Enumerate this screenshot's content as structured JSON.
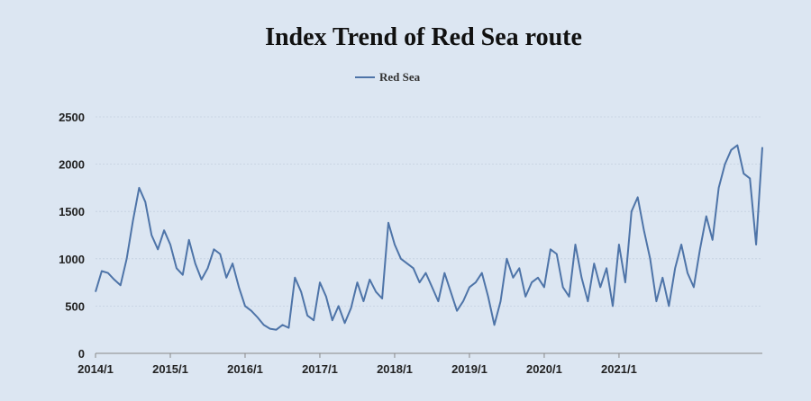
{
  "chart_data": {
    "type": "line",
    "title": "Index Trend of Red Sea route",
    "xlabel": "",
    "ylabel": "",
    "ylim": [
      0,
      2500
    ],
    "grid": true,
    "legend_position": "top-center",
    "y_ticks": [
      0,
      500,
      1000,
      1500,
      2000,
      2500
    ],
    "x_ticks": [
      "2014/1",
      "2015/1",
      "2016/1",
      "2017/1",
      "2018/1",
      "2019/1",
      "2020/1",
      "2021/1"
    ],
    "series": [
      {
        "name": "Red Sea",
        "color": "#4e74a8",
        "points": [
          [
            "2014/1",
            650
          ],
          [
            "2014/2",
            870
          ],
          [
            "2014/3",
            850
          ],
          [
            "2014/4",
            780
          ],
          [
            "2014/5",
            720
          ],
          [
            "2014/6",
            1000
          ],
          [
            "2014/7",
            1400
          ],
          [
            "2014/8",
            1750
          ],
          [
            "2014/9",
            1600
          ],
          [
            "2014/10",
            1250
          ],
          [
            "2014/11",
            1100
          ],
          [
            "2014/12",
            1300
          ],
          [
            "2015/1",
            1150
          ],
          [
            "2015/2",
            900
          ],
          [
            "2015/3",
            830
          ],
          [
            "2015/4",
            1200
          ],
          [
            "2015/5",
            950
          ],
          [
            "2015/6",
            780
          ],
          [
            "2015/7",
            900
          ],
          [
            "2015/8",
            1100
          ],
          [
            "2015/9",
            1050
          ],
          [
            "2015/10",
            800
          ],
          [
            "2015/11",
            950
          ],
          [
            "2015/12",
            700
          ],
          [
            "2016/1",
            500
          ],
          [
            "2016/2",
            450
          ],
          [
            "2016/3",
            380
          ],
          [
            "2016/4",
            300
          ],
          [
            "2016/5",
            260
          ],
          [
            "2016/6",
            250
          ],
          [
            "2016/7",
            300
          ],
          [
            "2016/8",
            270
          ],
          [
            "2016/9",
            800
          ],
          [
            "2016/10",
            650
          ],
          [
            "2016/11",
            400
          ],
          [
            "2016/12",
            350
          ],
          [
            "2017/1",
            750
          ],
          [
            "2017/2",
            600
          ],
          [
            "2017/3",
            350
          ],
          [
            "2017/4",
            500
          ],
          [
            "2017/5",
            320
          ],
          [
            "2017/6",
            480
          ],
          [
            "2017/7",
            750
          ],
          [
            "2017/8",
            550
          ],
          [
            "2017/9",
            780
          ],
          [
            "2017/10",
            650
          ],
          [
            "2017/11",
            580
          ],
          [
            "2017/12",
            1380
          ],
          [
            "2018/1",
            1150
          ],
          [
            "2018/2",
            1000
          ],
          [
            "2018/3",
            950
          ],
          [
            "2018/4",
            900
          ],
          [
            "2018/5",
            750
          ],
          [
            "2018/6",
            850
          ],
          [
            "2018/7",
            700
          ],
          [
            "2018/8",
            550
          ],
          [
            "2018/9",
            850
          ],
          [
            "2018/10",
            650
          ],
          [
            "2018/11",
            450
          ],
          [
            "2018/12",
            550
          ],
          [
            "2019/1",
            700
          ],
          [
            "2019/2",
            750
          ],
          [
            "2019/3",
            850
          ],
          [
            "2019/4",
            600
          ],
          [
            "2019/5",
            300
          ],
          [
            "2019/6",
            550
          ],
          [
            "2019/7",
            1000
          ],
          [
            "2019/8",
            800
          ],
          [
            "2019/9",
            900
          ],
          [
            "2019/10",
            600
          ],
          [
            "2019/11",
            750
          ],
          [
            "2019/12",
            800
          ],
          [
            "2020/1",
            700
          ],
          [
            "2020/2",
            1100
          ],
          [
            "2020/3",
            1050
          ],
          [
            "2020/4",
            700
          ],
          [
            "2020/5",
            600
          ],
          [
            "2020/6",
            1150
          ],
          [
            "2020/7",
            800
          ],
          [
            "2020/8",
            550
          ],
          [
            "2020/9",
            950
          ],
          [
            "2020/10",
            700
          ],
          [
            "2020/11",
            900
          ],
          [
            "2020/12",
            500
          ],
          [
            "2021/1",
            1150
          ],
          [
            "2021/2",
            750
          ],
          [
            "2021/3",
            1500
          ],
          [
            "2021/4",
            1650
          ],
          [
            "2021/5",
            1300
          ],
          [
            "2021/6",
            1000
          ],
          [
            "2021/7",
            550
          ],
          [
            "2021/8",
            800
          ],
          [
            "2021/9",
            500
          ],
          [
            "2021/10",
            900
          ],
          [
            "2021/11",
            1150
          ],
          [
            "2021/12",
            850
          ],
          [
            "2022/1",
            700
          ],
          [
            "2022/2",
            1100
          ],
          [
            "2022/3",
            1450
          ],
          [
            "2022/4",
            1200
          ],
          [
            "2022/5",
            1750
          ],
          [
            "2022/6",
            2000
          ],
          [
            "2022/7",
            2150
          ],
          [
            "2022/8",
            2200
          ],
          [
            "2022/9",
            1900
          ],
          [
            "2022/10",
            1850
          ],
          [
            "2022/11",
            1150
          ],
          [
            "2022/12",
            2180
          ]
        ]
      }
    ]
  }
}
